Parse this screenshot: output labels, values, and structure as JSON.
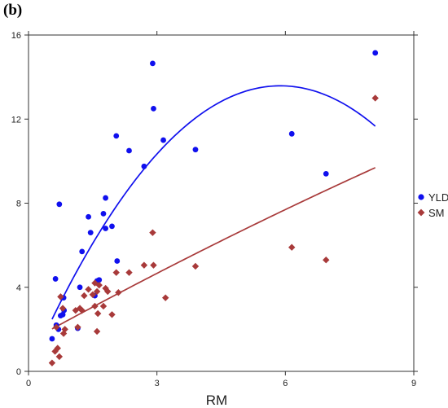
{
  "panel_label": "(b)",
  "chart_data": {
    "type": "scatter",
    "title": "",
    "xlabel": "RM",
    "ylabel": "",
    "xlim": [
      0,
      9
    ],
    "ylim": [
      0,
      16
    ],
    "xticks": [
      0,
      3,
      6,
      9
    ],
    "yticks": [
      0,
      4,
      8,
      12,
      16
    ],
    "grid": false,
    "legend_position": "right",
    "series": [
      {
        "name": "YLD",
        "color": "#1010ee",
        "marker": "circle",
        "points": [
          [
            0.55,
            1.55
          ],
          [
            0.65,
            2.2
          ],
          [
            0.63,
            4.4
          ],
          [
            0.7,
            2.0
          ],
          [
            0.72,
            7.95
          ],
          [
            0.75,
            2.65
          ],
          [
            0.8,
            2.7
          ],
          [
            0.82,
            3.5
          ],
          [
            0.83,
            2.9
          ],
          [
            1.15,
            2.05
          ],
          [
            1.2,
            4.0
          ],
          [
            1.25,
            5.7
          ],
          [
            1.4,
            7.35
          ],
          [
            1.45,
            6.6
          ],
          [
            1.55,
            3.6
          ],
          [
            1.6,
            4.3
          ],
          [
            1.65,
            4.35
          ],
          [
            1.75,
            7.5
          ],
          [
            1.8,
            8.25
          ],
          [
            1.8,
            6.8
          ],
          [
            1.95,
            6.9
          ],
          [
            2.05,
            11.2
          ],
          [
            2.07,
            5.25
          ],
          [
            2.35,
            10.5
          ],
          [
            2.7,
            9.75
          ],
          [
            2.9,
            14.65
          ],
          [
            2.92,
            12.5
          ],
          [
            3.15,
            11.0
          ],
          [
            3.9,
            10.55
          ],
          [
            6.15,
            11.3
          ],
          [
            6.95,
            9.4
          ],
          [
            8.1,
            15.15
          ]
        ]
      },
      {
        "name": "SM",
        "color": "#a83a3a",
        "marker": "diamond",
        "points": [
          [
            0.55,
            0.4
          ],
          [
            0.62,
            0.95
          ],
          [
            0.68,
            1.1
          ],
          [
            0.72,
            0.7
          ],
          [
            0.65,
            2.1
          ],
          [
            0.75,
            3.55
          ],
          [
            0.8,
            3.0
          ],
          [
            0.82,
            1.8
          ],
          [
            0.85,
            2.0
          ],
          [
            1.1,
            2.9
          ],
          [
            1.15,
            2.1
          ],
          [
            1.2,
            3.0
          ],
          [
            1.25,
            2.9
          ],
          [
            1.3,
            3.6
          ],
          [
            1.4,
            3.9
          ],
          [
            1.5,
            3.65
          ],
          [
            1.55,
            4.2
          ],
          [
            1.55,
            3.1
          ],
          [
            1.6,
            3.8
          ],
          [
            1.6,
            1.9
          ],
          [
            1.62,
            2.75
          ],
          [
            1.65,
            4.1
          ],
          [
            1.75,
            3.1
          ],
          [
            1.8,
            3.95
          ],
          [
            1.85,
            3.8
          ],
          [
            1.95,
            2.7
          ],
          [
            2.05,
            4.7
          ],
          [
            2.1,
            3.75
          ],
          [
            2.35,
            4.7
          ],
          [
            2.7,
            5.05
          ],
          [
            2.9,
            6.6
          ],
          [
            2.92,
            5.05
          ],
          [
            3.2,
            3.5
          ],
          [
            3.9,
            5.0
          ],
          [
            6.15,
            5.9
          ],
          [
            6.95,
            5.3
          ],
          [
            8.1,
            13.0
          ]
        ]
      }
    ],
    "fits": [
      {
        "series": "YLD",
        "type": "polynomial-2",
        "x_range": [
          0.55,
          8.1
        ]
      },
      {
        "series": "SM",
        "type": "polynomial-2",
        "x_range": [
          0.55,
          8.1
        ]
      }
    ]
  }
}
